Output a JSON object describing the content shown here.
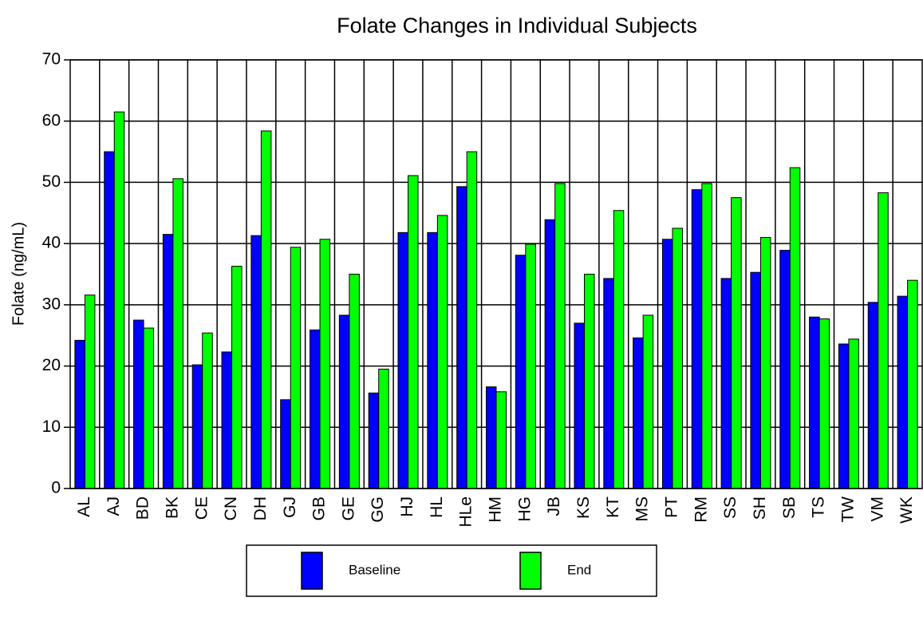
{
  "chart_data": {
    "type": "bar",
    "title": "Folate Changes in Individual Subjects",
    "y_label": "Folate (ng/mL)",
    "categories": [
      "AL",
      "AJ",
      "BD",
      "BK",
      "CE",
      "CN",
      "DH",
      "GJ",
      "GB",
      "GE",
      "GG",
      "HJ",
      "HL",
      "HLe",
      "HM",
      "HG",
      "JB",
      "KS",
      "KT",
      "MS",
      "PT",
      "RM",
      "SS",
      "SH",
      "SB",
      "TS",
      "TW",
      "VM",
      "WK"
    ],
    "series": [
      {
        "name": "Baseline",
        "color": "#0000ff",
        "values": [
          24.2,
          55.0,
          27.5,
          41.5,
          20.2,
          22.3,
          41.3,
          14.5,
          25.9,
          28.3,
          15.6,
          41.8,
          41.8,
          49.3,
          16.6,
          38.1,
          43.9,
          27.0,
          34.3,
          24.6,
          40.7,
          48.8,
          34.3,
          35.3,
          38.9,
          28.0,
          23.6,
          30.4,
          31.4
        ]
      },
      {
        "name": "End",
        "color": "#00ff00",
        "values": [
          31.6,
          61.5,
          26.2,
          50.6,
          25.4,
          36.3,
          58.4,
          39.4,
          40.7,
          35.0,
          19.5,
          51.1,
          44.6,
          55.0,
          15.8,
          39.9,
          49.8,
          35.0,
          45.4,
          28.3,
          42.5,
          49.8,
          47.5,
          41.0,
          52.4,
          27.7,
          24.4,
          48.3,
          34.0
        ]
      }
    ],
    "ylim": [
      0,
      70
    ],
    "yticks": [
      0,
      10,
      20,
      30,
      40,
      50,
      60,
      70
    ],
    "grid": true,
    "legend": "bottom"
  }
}
